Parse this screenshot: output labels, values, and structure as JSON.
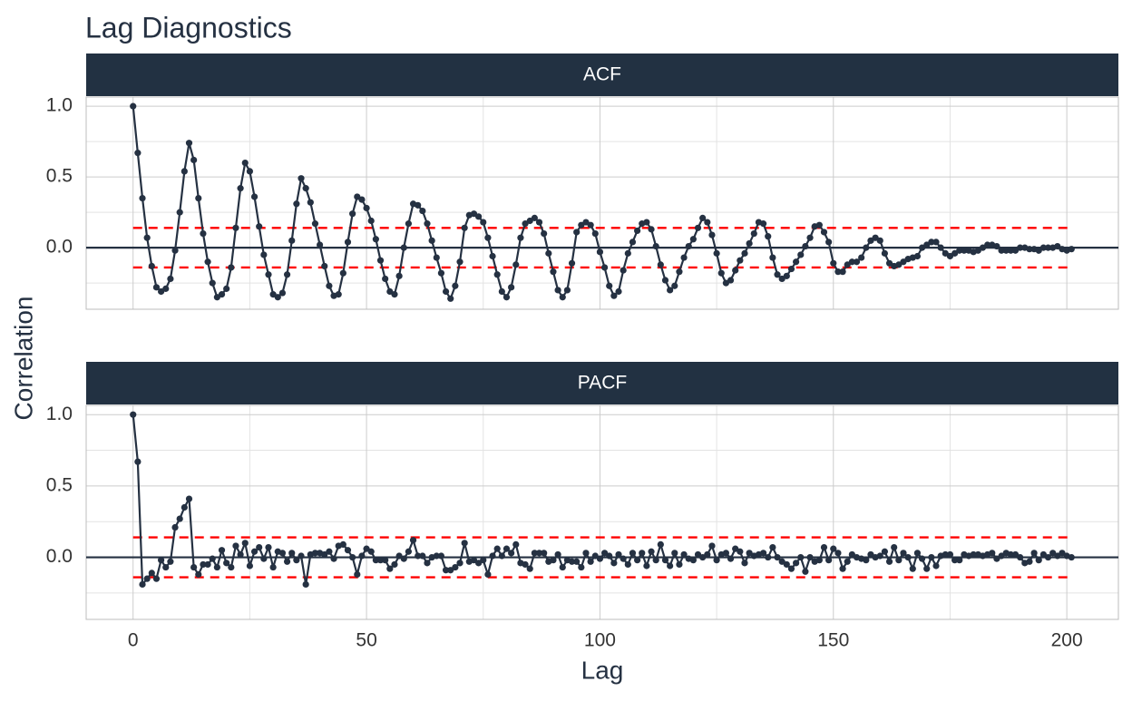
{
  "title": "Lag Diagnostics",
  "x_label": "Lag",
  "y_label": "Correlation",
  "chart_data": [
    {
      "type": "line",
      "title": "ACF",
      "color": "#253142",
      "band_color": "#ff0000",
      "confidence_bound": 0.14,
      "grid": true,
      "xlim": [
        -10.05,
        211.05
      ],
      "xticks": [
        0,
        50,
        100,
        150,
        200
      ],
      "x_minor_ticks": [
        25,
        75,
        125,
        175
      ],
      "ylim": [
        -0.435,
        1.065
      ],
      "yticks": [
        {
          "value": 0,
          "label": "0.0"
        },
        0.5,
        {
          "value": 1,
          "label": "1.0"
        }
      ],
      "y_minor_ticks": [
        -0.25,
        0.25,
        0.75
      ],
      "x": [
        0,
        1,
        2,
        3,
        4,
        5,
        6,
        7,
        8,
        9,
        10,
        11,
        12,
        13,
        14,
        15,
        16,
        17,
        18,
        19,
        20,
        21,
        22,
        23,
        24,
        25,
        26,
        27,
        28,
        29,
        30,
        31,
        32,
        33,
        34,
        35,
        36,
        37,
        38,
        39,
        40,
        41,
        42,
        43,
        44,
        45,
        46,
        47,
        48,
        49,
        50,
        51,
        52,
        53,
        54,
        55,
        56,
        57,
        58,
        59,
        60,
        61,
        62,
        63,
        64,
        65,
        66,
        67,
        68,
        69,
        70,
        71,
        72,
        73,
        74,
        75,
        76,
        77,
        78,
        79,
        80,
        81,
        82,
        83,
        84,
        85,
        86,
        87,
        88,
        89,
        90,
        91,
        92,
        93,
        94,
        95,
        96,
        97,
        98,
        99,
        100,
        101,
        102,
        103,
        104,
        105,
        106,
        107,
        108,
        109,
        110,
        111,
        112,
        113,
        114,
        115,
        116,
        117,
        118,
        119,
        120,
        121,
        122,
        123,
        124,
        125,
        126,
        127,
        128,
        129,
        130,
        131,
        132,
        133,
        134,
        135,
        136,
        137,
        138,
        139,
        140,
        141,
        142,
        143,
        144,
        145,
        146,
        147,
        148,
        149,
        150,
        151,
        152,
        153,
        154,
        155,
        156,
        157,
        158,
        159,
        160,
        161,
        162,
        163,
        164,
        165,
        166,
        167,
        168,
        169,
        170,
        171,
        172,
        173,
        174,
        175,
        176,
        177,
        178,
        179,
        180,
        181,
        182,
        183,
        184,
        185,
        186,
        187,
        188,
        189,
        190,
        191,
        192,
        193,
        194,
        195,
        196,
        197,
        198,
        199,
        200,
        201
      ],
      "values": [
        1.0,
        0.67,
        0.35,
        0.07,
        -0.13,
        -0.28,
        -0.31,
        -0.29,
        -0.22,
        -0.02,
        0.25,
        0.54,
        0.74,
        0.62,
        0.35,
        0.1,
        -0.1,
        -0.25,
        -0.35,
        -0.33,
        -0.29,
        -0.14,
        0.14,
        0.42,
        0.6,
        0.54,
        0.36,
        0.15,
        -0.05,
        -0.19,
        -0.33,
        -0.35,
        -0.32,
        -0.19,
        0.05,
        0.31,
        0.49,
        0.42,
        0.32,
        0.17,
        0.02,
        -0.13,
        -0.27,
        -0.34,
        -0.33,
        -0.18,
        0.04,
        0.24,
        0.36,
        0.34,
        0.28,
        0.19,
        0.06,
        -0.09,
        -0.22,
        -0.31,
        -0.33,
        -0.2,
        0.0,
        0.17,
        0.31,
        0.3,
        0.26,
        0.17,
        0.05,
        -0.07,
        -0.18,
        -0.31,
        -0.36,
        -0.27,
        -0.1,
        0.14,
        0.23,
        0.24,
        0.22,
        0.18,
        0.07,
        -0.06,
        -0.19,
        -0.31,
        -0.35,
        -0.28,
        -0.12,
        0.07,
        0.17,
        0.19,
        0.21,
        0.18,
        0.1,
        -0.04,
        -0.17,
        -0.3,
        -0.35,
        -0.3,
        -0.11,
        0.11,
        0.16,
        0.18,
        0.16,
        0.1,
        -0.03,
        -0.14,
        -0.27,
        -0.34,
        -0.31,
        -0.16,
        -0.04,
        0.04,
        0.12,
        0.17,
        0.18,
        0.13,
        0.01,
        -0.12,
        -0.23,
        -0.3,
        -0.27,
        -0.17,
        -0.07,
        0.01,
        0.06,
        0.14,
        0.21,
        0.18,
        0.09,
        -0.04,
        -0.18,
        -0.25,
        -0.23,
        -0.16,
        -0.09,
        -0.04,
        0.03,
        0.1,
        0.18,
        0.17,
        0.08,
        -0.07,
        -0.19,
        -0.22,
        -0.2,
        -0.15,
        -0.1,
        -0.05,
        0.01,
        0.07,
        0.15,
        0.16,
        0.11,
        0.04,
        -0.11,
        -0.17,
        -0.17,
        -0.12,
        -0.1,
        -0.1,
        -0.07,
        0.0,
        0.05,
        0.07,
        0.05,
        -0.04,
        -0.11,
        -0.13,
        -0.12,
        -0.1,
        -0.08,
        -0.07,
        -0.06,
        0.0,
        0.02,
        0.04,
        0.04,
        0.0,
        -0.04,
        -0.06,
        -0.04,
        -0.02,
        -0.02,
        -0.02,
        -0.03,
        -0.02,
        0.0,
        0.02,
        0.02,
        0.01,
        -0.02,
        -0.02,
        -0.02,
        -0.02,
        0.0,
        0.0,
        -0.01,
        -0.01,
        -0.02,
        0.0,
        0.0,
        0.0,
        0.01,
        -0.01,
        -0.02,
        -0.01
      ]
    },
    {
      "type": "line",
      "title": "PACF",
      "color": "#253142",
      "band_color": "#ff0000",
      "confidence_bound": 0.14,
      "grid": true,
      "xlim": [
        -10.05,
        211.05
      ],
      "xticks": [
        0,
        50,
        100,
        150,
        200
      ],
      "x_minor_ticks": [
        25,
        75,
        125,
        175
      ],
      "ylim": [
        -0.435,
        1.065
      ],
      "yticks": [
        {
          "value": 0,
          "label": "0.0"
        },
        0.5,
        {
          "value": 1,
          "label": "1.0"
        }
      ],
      "y_minor_ticks": [
        -0.25,
        0.25,
        0.75
      ],
      "x": [
        0,
        1,
        2,
        3,
        4,
        5,
        6,
        7,
        8,
        9,
        10,
        11,
        12,
        13,
        14,
        15,
        16,
        17,
        18,
        19,
        20,
        21,
        22,
        23,
        24,
        25,
        26,
        27,
        28,
        29,
        30,
        31,
        32,
        33,
        34,
        35,
        36,
        37,
        38,
        39,
        40,
        41,
        42,
        43,
        44,
        45,
        46,
        47,
        48,
        49,
        50,
        51,
        52,
        53,
        54,
        55,
        56,
        57,
        58,
        59,
        60,
        61,
        62,
        63,
        64,
        65,
        66,
        67,
        68,
        69,
        70,
        71,
        72,
        73,
        74,
        75,
        76,
        77,
        78,
        79,
        80,
        81,
        82,
        83,
        84,
        85,
        86,
        87,
        88,
        89,
        90,
        91,
        92,
        93,
        94,
        95,
        96,
        97,
        98,
        99,
        100,
        101,
        102,
        103,
        104,
        105,
        106,
        107,
        108,
        109,
        110,
        111,
        112,
        113,
        114,
        115,
        116,
        117,
        118,
        119,
        120,
        121,
        122,
        123,
        124,
        125,
        126,
        127,
        128,
        129,
        130,
        131,
        132,
        133,
        134,
        135,
        136,
        137,
        138,
        139,
        140,
        141,
        142,
        143,
        144,
        145,
        146,
        147,
        148,
        149,
        150,
        151,
        152,
        153,
        154,
        155,
        156,
        157,
        158,
        159,
        160,
        161,
        162,
        163,
        164,
        165,
        166,
        167,
        168,
        169,
        170,
        171,
        172,
        173,
        174,
        175,
        176,
        177,
        178,
        179,
        180,
        181,
        182,
        183,
        184,
        185,
        186,
        187,
        188,
        189,
        190,
        191,
        192,
        193,
        194,
        195,
        196,
        197,
        198,
        199,
        200,
        201
      ],
      "values": [
        1.0,
        0.67,
        -0.19,
        -0.15,
        -0.11,
        -0.15,
        -0.02,
        -0.07,
        -0.03,
        0.21,
        0.27,
        0.35,
        0.41,
        -0.07,
        -0.12,
        -0.05,
        -0.05,
        -0.01,
        -0.07,
        0.05,
        -0.04,
        -0.07,
        0.08,
        0.02,
        0.1,
        -0.06,
        0.04,
        0.07,
        -0.01,
        0.07,
        -0.07,
        0.04,
        0.03,
        -0.03,
        0.03,
        -0.02,
        0.01,
        -0.19,
        0.02,
        0.03,
        0.03,
        0.02,
        0.04,
        -0.01,
        0.08,
        0.09,
        0.05,
        0.0,
        -0.12,
        0.01,
        0.06,
        0.04,
        -0.02,
        -0.02,
        -0.02,
        -0.08,
        -0.05,
        0.01,
        -0.01,
        0.04,
        0.12,
        0.01,
        0.01,
        -0.04,
        0.0,
        0.01,
        0.01,
        -0.09,
        -0.09,
        -0.07,
        -0.04,
        0.1,
        -0.03,
        -0.02,
        -0.04,
        -0.02,
        -0.12,
        0.01,
        0.06,
        0.01,
        0.06,
        0.03,
        0.09,
        -0.04,
        -0.05,
        -0.08,
        0.03,
        0.03,
        0.03,
        -0.03,
        -0.02,
        0.02,
        -0.07,
        -0.02,
        -0.03,
        -0.03,
        -0.07,
        0.03,
        -0.03,
        0.01,
        -0.01,
        0.03,
        0.01,
        -0.04,
        0.02,
        -0.01,
        -0.05,
        0.03,
        -0.02,
        0.03,
        -0.06,
        0.04,
        -0.02,
        0.09,
        -0.02,
        -0.06,
        0.03,
        -0.05,
        0.02,
        -0.01,
        -0.02,
        0.02,
        0.0,
        0.02,
        0.08,
        -0.02,
        0.02,
        0.03,
        -0.01,
        0.06,
        0.04,
        -0.04,
        0.03,
        0.01,
        0.02,
        0.03,
        0.0,
        0.07,
        0.0,
        -0.03,
        -0.05,
        -0.08,
        -0.04,
        0.0,
        -0.1,
        0.0,
        -0.03,
        -0.02,
        0.07,
        -0.02,
        0.06,
        0.03,
        -0.08,
        -0.03,
        0.02,
        0.0,
        -0.01,
        -0.02,
        0.02,
        0.0,
        0.01,
        0.04,
        -0.03,
        0.07,
        -0.02,
        0.03,
        0.0,
        -0.08,
        0.03,
        -0.01,
        -0.08,
        0.0,
        -0.06,
        0.01,
        0.02,
        0.02,
        -0.02,
        -0.02,
        0.02,
        0.01,
        0.02,
        0.02,
        0.01,
        0.02,
        0.03,
        -0.01,
        0.01,
        0.03,
        0.02,
        0.02,
        0.0,
        -0.04,
        -0.03,
        0.03,
        -0.02,
        0.02,
        0.0,
        0.03,
        0.01,
        0.03,
        0.01,
        0.0
      ]
    }
  ]
}
